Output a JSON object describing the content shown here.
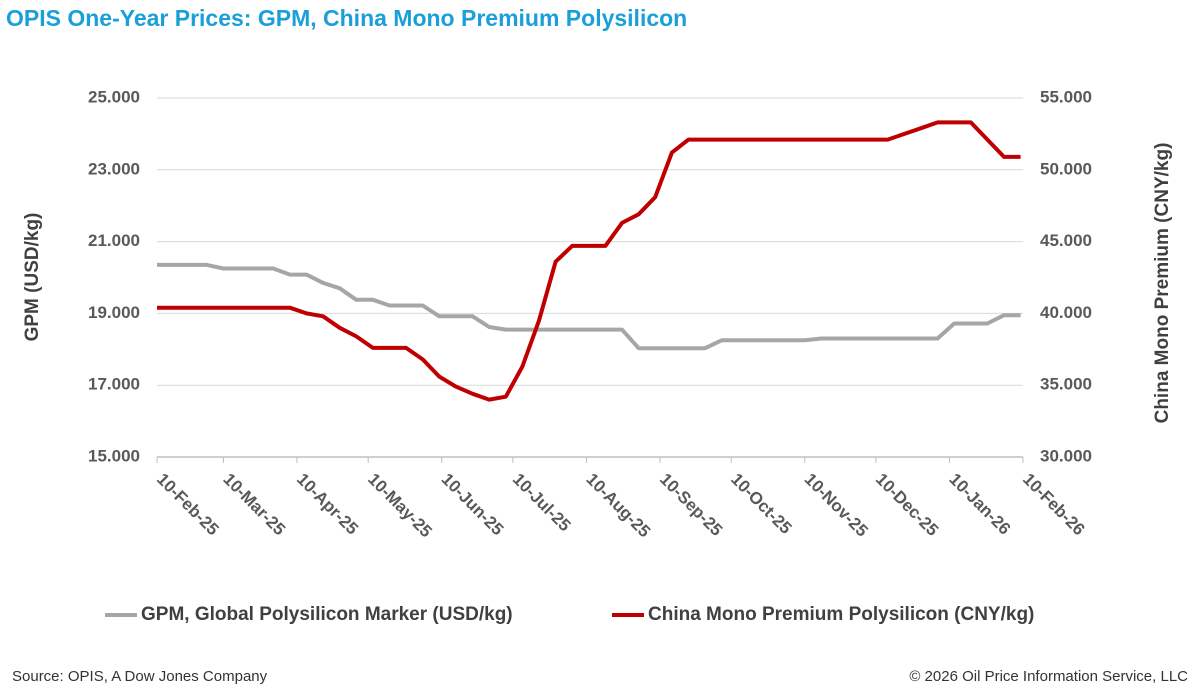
{
  "chart_data": {
    "type": "line",
    "title": "OPIS One-Year Prices: GPM, China Mono Premium Polysilicon",
    "y_label": "GPM (USD/kg)",
    "y2_label": "China Mono Premium (CNY/kg)",
    "source": "Source: OPIS, A Dow Jones Company",
    "copyright": "© 2026 Oil Price Information Service, LLC",
    "x": [
      "2025-02-10",
      "2025-02-17",
      "2025-02-24",
      "2025-03-03",
      "2025-03-10",
      "2025-03-17",
      "2025-03-24",
      "2025-03-31",
      "2025-04-07",
      "2025-04-14",
      "2025-04-21",
      "2025-04-28",
      "2025-05-05",
      "2025-05-12",
      "2025-05-19",
      "2025-05-26",
      "2025-06-02",
      "2025-06-09",
      "2025-06-16",
      "2025-06-23",
      "2025-06-30",
      "2025-07-07",
      "2025-07-14",
      "2025-07-21",
      "2025-07-28",
      "2025-08-04",
      "2025-08-11",
      "2025-08-18",
      "2025-08-25",
      "2025-09-01",
      "2025-09-08",
      "2025-09-15",
      "2025-09-22",
      "2025-09-29",
      "2025-10-06",
      "2025-10-13",
      "2025-10-20",
      "2025-10-27",
      "2025-11-03",
      "2025-11-10",
      "2025-11-17",
      "2025-11-24",
      "2025-12-01",
      "2025-12-08",
      "2025-12-15",
      "2025-12-22",
      "2025-12-29",
      "2026-01-05",
      "2026-01-12",
      "2026-01-19",
      "2026-01-26",
      "2026-02-02",
      "2026-02-09"
    ],
    "series": [
      {
        "name": "GPM, Global Polysilicon Marker (USD/kg)",
        "color": "#a6a6a6",
        "values": [
          20.35,
          20.35,
          20.35,
          20.35,
          20.25,
          20.25,
          20.25,
          20.25,
          20.08,
          20.08,
          19.85,
          19.7,
          19.38,
          19.38,
          19.22,
          19.22,
          19.22,
          18.92,
          18.92,
          18.92,
          18.62,
          18.55,
          18.55,
          18.55,
          18.55,
          18.55,
          18.55,
          18.55,
          18.55,
          18.03,
          18.03,
          18.03,
          18.03,
          18.03,
          18.25,
          18.25,
          18.25,
          18.25,
          18.25,
          18.25,
          18.3,
          18.3,
          18.3,
          18.3,
          18.3,
          18.3,
          18.3,
          18.3,
          18.72,
          18.72,
          18.72,
          18.95,
          18.95
        ]
      },
      {
        "name": "China Mono Premium Polysilicon (CNY/kg)",
        "color": "#c00000",
        "axis": "y2",
        "values": [
          40.4,
          40.4,
          40.4,
          40.4,
          40.4,
          40.4,
          40.4,
          40.4,
          40.4,
          40.0,
          39.8,
          39.0,
          38.4,
          37.6,
          37.6,
          37.6,
          36.8,
          35.6,
          34.9,
          34.4,
          34.0,
          34.2,
          36.3,
          39.5,
          43.6,
          44.7,
          44.7,
          44.7,
          46.3,
          46.9,
          48.1,
          51.2,
          52.1,
          52.1,
          52.1,
          52.1,
          52.1,
          52.1,
          52.1,
          52.1,
          52.1,
          52.1,
          52.1,
          52.1,
          52.1,
          52.5,
          52.9,
          53.3,
          53.3,
          53.3,
          52.1,
          50.9,
          50.9
        ]
      }
    ],
    "xlim": [
      "2025-02-10",
      "2026-02-10"
    ],
    "xticks": [
      {
        "value": "2025-02-10",
        "label": "10-Feb-25"
      },
      {
        "value": "2025-03-10",
        "label": "10-Mar-25"
      },
      {
        "value": "2025-04-10",
        "label": "10-Apr-25"
      },
      {
        "value": "2025-05-10",
        "label": "10-May-25"
      },
      {
        "value": "2025-06-10",
        "label": "10-Jun-25"
      },
      {
        "value": "2025-07-10",
        "label": "10-Jul-25"
      },
      {
        "value": "2025-08-10",
        "label": "10-Aug-25"
      },
      {
        "value": "2025-09-10",
        "label": "10-Sep-25"
      },
      {
        "value": "2025-10-10",
        "label": "10-Oct-25"
      },
      {
        "value": "2025-11-10",
        "label": "10-Nov-25"
      },
      {
        "value": "2025-12-10",
        "label": "10-Dec-25"
      },
      {
        "value": "2026-01-10",
        "label": "10-Jan-26"
      },
      {
        "value": "2026-02-10",
        "label": "10-Feb-26"
      }
    ],
    "ylim": [
      15,
      25
    ],
    "yticks": [
      {
        "value": 15,
        "label": "15.000"
      },
      {
        "value": 17,
        "label": "17.000"
      },
      {
        "value": 19,
        "label": "19.000"
      },
      {
        "value": 21,
        "label": "21.000"
      },
      {
        "value": 23,
        "label": "23.000"
      },
      {
        "value": 25,
        "label": "25.000"
      }
    ],
    "y2lim": [
      30,
      55
    ],
    "y2ticks": [
      {
        "value": 30,
        "label": "30.000"
      },
      {
        "value": 35,
        "label": "35.000"
      },
      {
        "value": 40,
        "label": "40.000"
      },
      {
        "value": 45,
        "label": "45.000"
      },
      {
        "value": 50,
        "label": "50.000"
      },
      {
        "value": 55,
        "label": "55.000"
      }
    ],
    "grid": true
  }
}
